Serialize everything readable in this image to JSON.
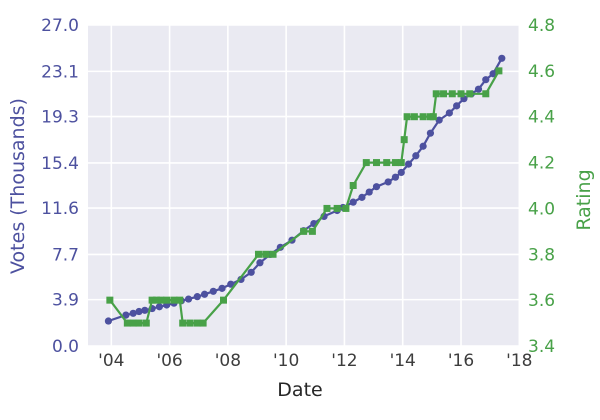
{
  "figure": {
    "background": "#ffffff",
    "plot_background": "#eaeaf2",
    "grid_color": "#ffffff",
    "votes_color": "#4d519f",
    "rating_color": "#48a148",
    "xtick_color": "#3d3d3d"
  },
  "chart_data": {
    "type": "line",
    "title": "",
    "xlabel": "Date",
    "ylabel_left": "Votes (Thousands)",
    "ylabel_right": "Rating",
    "grid": true,
    "legend": false,
    "x_axis": {
      "range": [
        2003.2,
        2018.0
      ],
      "ticks": [
        2004,
        2006,
        2008,
        2010,
        2012,
        2014,
        2016,
        2018
      ],
      "tick_labels": [
        "'04",
        "'06",
        "'08",
        "'10",
        "'12",
        "'14",
        "'16",
        "'18"
      ]
    },
    "y_axis_left": {
      "label": "Votes (Thousands)",
      "range": [
        0.0,
        27.0
      ],
      "ticks": [
        0.0,
        3.9,
        7.7,
        11.6,
        15.4,
        19.3,
        23.1,
        27.0
      ],
      "tick_labels": [
        "0.0",
        "3.9",
        "7.7",
        "11.6",
        "15.4",
        "19.3",
        "23.1",
        "27.0"
      ],
      "color": "#4d519f"
    },
    "y_axis_right": {
      "label": "Rating",
      "range": [
        3.4,
        4.8
      ],
      "ticks": [
        3.4,
        3.6,
        3.8,
        4.0,
        4.2,
        4.4,
        4.6,
        4.8
      ],
      "tick_labels": [
        "3.4",
        "3.6",
        "3.8",
        "4.0",
        "4.2",
        "4.4",
        "4.6",
        "4.8"
      ],
      "color": "#48a148"
    },
    "series": [
      {
        "name": "Votes (Thousands)",
        "axis": "left",
        "color": "#4d519f",
        "marker": "circle",
        "points": [
          [
            2003.9,
            2.1
          ],
          [
            2004.5,
            2.6
          ],
          [
            2004.75,
            2.75
          ],
          [
            2004.95,
            2.9
          ],
          [
            2005.15,
            3.0
          ],
          [
            2005.4,
            3.15
          ],
          [
            2005.65,
            3.3
          ],
          [
            2005.9,
            3.45
          ],
          [
            2006.15,
            3.6
          ],
          [
            2006.4,
            3.8
          ],
          [
            2006.65,
            3.95
          ],
          [
            2006.95,
            4.15
          ],
          [
            2007.2,
            4.35
          ],
          [
            2007.5,
            4.6
          ],
          [
            2007.8,
            4.85
          ],
          [
            2008.1,
            5.2
          ],
          [
            2008.45,
            5.6
          ],
          [
            2008.8,
            6.2
          ],
          [
            2009.1,
            7.0
          ],
          [
            2009.45,
            7.7
          ],
          [
            2009.8,
            8.3
          ],
          [
            2010.2,
            8.9
          ],
          [
            2010.6,
            9.7
          ],
          [
            2010.95,
            10.3
          ],
          [
            2011.3,
            10.9
          ],
          [
            2011.75,
            11.4
          ],
          [
            2011.95,
            11.65
          ],
          [
            2012.3,
            12.1
          ],
          [
            2012.6,
            12.5
          ],
          [
            2012.85,
            12.95
          ],
          [
            2013.1,
            13.4
          ],
          [
            2013.5,
            13.8
          ],
          [
            2013.75,
            14.2
          ],
          [
            2013.95,
            14.6
          ],
          [
            2014.2,
            15.3
          ],
          [
            2014.45,
            16.0
          ],
          [
            2014.7,
            16.8
          ],
          [
            2014.95,
            17.9
          ],
          [
            2015.25,
            19.0
          ],
          [
            2015.6,
            19.6
          ],
          [
            2015.85,
            20.2
          ],
          [
            2016.1,
            20.8
          ],
          [
            2016.35,
            21.2
          ],
          [
            2016.6,
            21.6
          ],
          [
            2016.85,
            22.4
          ],
          [
            2017.1,
            22.9
          ],
          [
            2017.4,
            24.2
          ]
        ]
      },
      {
        "name": "Rating",
        "axis": "right",
        "color": "#48a148",
        "marker": "square",
        "points": [
          [
            2003.95,
            3.6
          ],
          [
            2004.55,
            3.5
          ],
          [
            2004.75,
            3.5
          ],
          [
            2004.95,
            3.5
          ],
          [
            2005.2,
            3.5
          ],
          [
            2005.4,
            3.6
          ],
          [
            2005.55,
            3.6
          ],
          [
            2005.7,
            3.6
          ],
          [
            2005.9,
            3.6
          ],
          [
            2006.15,
            3.6
          ],
          [
            2006.35,
            3.6
          ],
          [
            2006.45,
            3.5
          ],
          [
            2006.7,
            3.5
          ],
          [
            2006.95,
            3.5
          ],
          [
            2007.15,
            3.5
          ],
          [
            2007.85,
            3.6
          ],
          [
            2009.05,
            3.8
          ],
          [
            2009.3,
            3.8
          ],
          [
            2009.55,
            3.8
          ],
          [
            2010.6,
            3.9
          ],
          [
            2010.9,
            3.9
          ],
          [
            2011.4,
            4.0
          ],
          [
            2011.75,
            4.0
          ],
          [
            2012.05,
            4.0
          ],
          [
            2012.3,
            4.1
          ],
          [
            2012.75,
            4.2
          ],
          [
            2013.1,
            4.2
          ],
          [
            2013.45,
            4.2
          ],
          [
            2013.75,
            4.2
          ],
          [
            2013.95,
            4.2
          ],
          [
            2014.05,
            4.3
          ],
          [
            2014.15,
            4.4
          ],
          [
            2014.4,
            4.4
          ],
          [
            2014.7,
            4.4
          ],
          [
            2014.95,
            4.4
          ],
          [
            2015.05,
            4.4
          ],
          [
            2015.15,
            4.5
          ],
          [
            2015.4,
            4.5
          ],
          [
            2015.7,
            4.5
          ],
          [
            2016.0,
            4.5
          ],
          [
            2016.3,
            4.5
          ],
          [
            2016.85,
            4.5
          ],
          [
            2017.3,
            4.6
          ]
        ]
      }
    ]
  }
}
